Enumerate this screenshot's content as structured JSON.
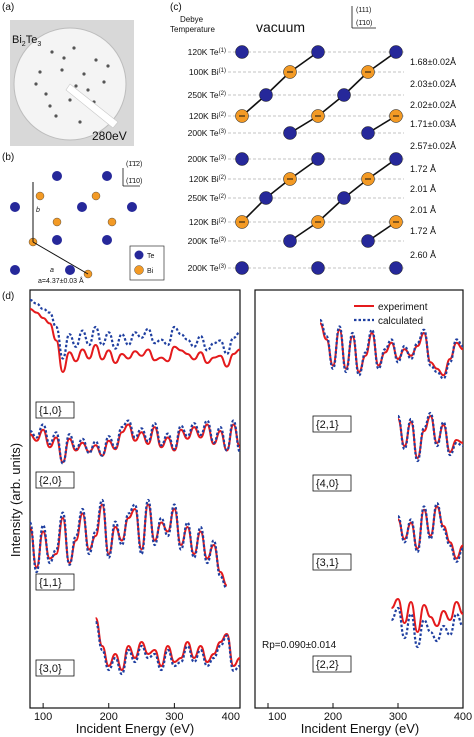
{
  "panels": {
    "a": {
      "label": "(a)",
      "material_main": "Bi",
      "material_sub1": "2",
      "material_mid": "Te",
      "material_sub2": "3",
      "energy": "280eV"
    },
    "b": {
      "label": "(b)",
      "axis_top": "(1̄1̄2)",
      "axis_right": "(1̄10)",
      "vec_b": "b",
      "vec_a": "a",
      "lattice_const": "a=4.37±0.03 Å",
      "legend": [
        {
          "label": "Te",
          "color": "#26289a"
        },
        {
          "label": "Bi",
          "color": "#f39a25"
        }
      ]
    },
    "c": {
      "label": "(c)",
      "debye_line1": "Debye",
      "debye_line2": "Temperature",
      "vacuum": "vacuum",
      "axis_top": "(111)",
      "axis_right": "(1̄10)",
      "layers": [
        {
          "temp": "120K",
          "el": "Te",
          "sup": "(1)",
          "kind": "Te"
        },
        {
          "temp": "100K",
          "el": "Bi",
          "sup": "(1)",
          "kind": "Bi"
        },
        {
          "temp": "250K",
          "el": "Te",
          "sup": "(2)",
          "kind": "Te"
        },
        {
          "temp": "120K",
          "el": "Bi",
          "sup": "(2)",
          "kind": "Bi"
        },
        {
          "temp": "200K",
          "el": "Te",
          "sup": "(3)",
          "kind": "Te"
        },
        {
          "temp": "200K",
          "el": "Te",
          "sup": "(3)",
          "kind": "Te"
        },
        {
          "temp": "120K",
          "el": "Bi",
          "sup": "(2)",
          "kind": "Bi"
        },
        {
          "temp": "250K",
          "el": "Te",
          "sup": "(2)",
          "kind": "Te"
        },
        {
          "temp": "120K",
          "el": "Bi",
          "sup": "(2)",
          "kind": "Bi"
        },
        {
          "temp": "200K",
          "el": "Te",
          "sup": "(3)",
          "kind": "Te"
        },
        {
          "temp": "200K",
          "el": "Te",
          "sup": "(3)",
          "kind": "Te"
        }
      ],
      "spacings": [
        "1.68±0.02Å",
        "2.03±0.02Å",
        "2.02±0.02Å",
        "1.71±0.03Å",
        "2.57±0.02Å",
        "1.72 Å",
        "2.01 Å",
        "2.01 Å",
        "1.72 Å",
        "2.60 Å"
      ]
    },
    "d": {
      "label": "(d)",
      "ylabel": "Intensity (arb. units)",
      "xlabel": "Incident Energy (eV)",
      "legend": [
        {
          "label": "experiment",
          "color": "#e41a1c",
          "style": "solid"
        },
        {
          "label": "calculated",
          "color": "#1f3fa0",
          "style": "dotted"
        }
      ],
      "rp": "Rp=0.090±0.014",
      "left_ticks": [
        "100",
        "200",
        "300",
        "400"
      ],
      "right_ticks": [
        "100",
        "200",
        "300",
        "400"
      ],
      "right_tick_prefix": "400"
    }
  },
  "chart_data": [
    {
      "type": "line",
      "title": "",
      "xlabel": "Incident Energy (eV)",
      "ylabel": "Intensity (arb. units)",
      "xlim": [
        80,
        400
      ],
      "curves": [
        {
          "name": "{1,0}",
          "x": [
            80,
            90,
            100,
            110,
            120,
            130,
            140,
            150,
            160,
            170,
            180,
            190,
            200,
            210,
            220,
            230,
            240,
            250,
            260,
            270,
            280,
            290,
            300,
            310,
            320,
            330,
            340,
            350,
            360,
            370,
            380,
            390,
            400
          ],
          "experiment": [
            0.9,
            0.86,
            0.8,
            0.74,
            0.55,
            0.2,
            0.42,
            0.32,
            0.45,
            0.35,
            0.5,
            0.34,
            0.44,
            0.3,
            0.4,
            0.35,
            0.43,
            0.38,
            0.45,
            0.33,
            0.36,
            0.32,
            0.48,
            0.44,
            0.4,
            0.34,
            0.42,
            0.3,
            0.36,
            0.38,
            0.26,
            0.4,
            0.45
          ],
          "calculated": [
            1.0,
            0.96,
            0.9,
            0.86,
            0.7,
            0.35,
            0.62,
            0.48,
            0.66,
            0.5,
            0.7,
            0.5,
            0.64,
            0.46,
            0.62,
            0.5,
            0.64,
            0.58,
            0.68,
            0.52,
            0.56,
            0.5,
            0.7,
            0.62,
            0.56,
            0.48,
            0.6,
            0.44,
            0.52,
            0.55,
            0.4,
            0.58,
            0.64
          ]
        },
        {
          "name": "{2,0}",
          "x": [
            80,
            90,
            100,
            110,
            120,
            130,
            140,
            150,
            160,
            170,
            180,
            190,
            200,
            210,
            220,
            230,
            240,
            250,
            260,
            270,
            280,
            290,
            300,
            310,
            320,
            330,
            340,
            350,
            360,
            370,
            380,
            390,
            400
          ],
          "experiment": [
            0.55,
            0.45,
            0.62,
            0.35,
            0.5,
            0.12,
            0.48,
            0.3,
            0.42,
            0.28,
            0.38,
            0.22,
            0.45,
            0.32,
            0.58,
            0.7,
            0.45,
            0.58,
            0.4,
            0.66,
            0.35,
            0.5,
            0.3,
            0.62,
            0.48,
            0.66,
            0.5,
            0.7,
            0.4,
            0.6,
            0.3,
            0.7,
            0.35
          ],
          "calculated": [
            0.6,
            0.5,
            0.7,
            0.4,
            0.58,
            0.1,
            0.55,
            0.32,
            0.48,
            0.26,
            0.44,
            0.22,
            0.52,
            0.34,
            0.66,
            0.76,
            0.5,
            0.64,
            0.44,
            0.72,
            0.38,
            0.56,
            0.32,
            0.68,
            0.52,
            0.72,
            0.54,
            0.76,
            0.42,
            0.66,
            0.3,
            0.76,
            0.28
          ]
        },
        {
          "name": "{1,1}",
          "x": [
            80,
            90,
            100,
            110,
            120,
            130,
            140,
            150,
            160,
            170,
            180,
            190,
            200,
            210,
            220,
            230,
            240,
            250,
            260,
            270,
            280,
            290,
            300,
            310,
            320,
            330,
            340,
            350,
            360,
            370,
            380
          ],
          "experiment": [
            0.7,
            0.25,
            0.65,
            0.35,
            0.4,
            0.8,
            0.3,
            0.55,
            0.85,
            0.45,
            0.6,
            0.95,
            0.4,
            0.7,
            0.55,
            0.8,
            0.9,
            0.45,
            0.95,
            0.55,
            0.75,
            0.65,
            0.9,
            0.5,
            0.7,
            0.4,
            0.65,
            0.35,
            0.5,
            0.2,
            0.05
          ],
          "calculated": [
            0.75,
            0.2,
            0.72,
            0.3,
            0.45,
            0.86,
            0.28,
            0.6,
            0.9,
            0.4,
            0.65,
            1.0,
            0.36,
            0.76,
            0.5,
            0.85,
            0.95,
            0.4,
            1.0,
            0.5,
            0.8,
            0.6,
            0.95,
            0.45,
            0.75,
            0.36,
            0.7,
            0.3,
            0.55,
            0.15,
            0.02
          ]
        },
        {
          "name": "{3,0}",
          "x": [
            180,
            190,
            200,
            210,
            220,
            230,
            240,
            250,
            260,
            270,
            280,
            290,
            300,
            310,
            320,
            330,
            340,
            350,
            360,
            370,
            380,
            390,
            400
          ],
          "experiment": [
            0.9,
            0.55,
            0.3,
            0.45,
            0.25,
            0.55,
            0.4,
            0.6,
            0.45,
            0.5,
            0.3,
            0.55,
            0.35,
            0.4,
            0.6,
            0.4,
            0.55,
            0.35,
            0.45,
            0.6,
            0.7,
            0.3,
            0.4
          ],
          "calculated": [
            0.85,
            0.5,
            0.25,
            0.4,
            0.2,
            0.5,
            0.35,
            0.55,
            0.4,
            0.45,
            0.25,
            0.5,
            0.3,
            0.35,
            0.55,
            0.35,
            0.5,
            0.3,
            0.4,
            0.55,
            0.68,
            0.24,
            0.3
          ]
        }
      ]
    },
    {
      "type": "line",
      "title": "",
      "xlabel": "Incident Energy (eV)",
      "ylabel": "",
      "xlim": [
        80,
        400
      ],
      "curves": [
        {
          "name": "{2,1}",
          "x": [
            180,
            190,
            200,
            210,
            220,
            230,
            240,
            250,
            260,
            270,
            280,
            290,
            300,
            310,
            320,
            330,
            340,
            350,
            360,
            370,
            380,
            390,
            400
          ],
          "experiment": [
            0.95,
            0.7,
            0.3,
            0.85,
            0.25,
            0.75,
            0.2,
            0.45,
            0.8,
            0.3,
            0.5,
            0.65,
            0.4,
            0.55,
            0.45,
            0.6,
            0.8,
            0.35,
            0.25,
            0.15,
            0.4,
            0.65,
            0.55
          ],
          "calculated": [
            1.0,
            0.75,
            0.25,
            0.9,
            0.2,
            0.8,
            0.15,
            0.5,
            0.85,
            0.25,
            0.55,
            0.7,
            0.35,
            0.6,
            0.4,
            0.65,
            0.85,
            0.3,
            0.2,
            0.1,
            0.35,
            0.7,
            0.6
          ]
        },
        {
          "name": "{4,0}",
          "x": [
            300,
            310,
            320,
            330,
            340,
            350,
            360,
            370,
            380,
            390,
            400
          ],
          "experiment": [
            0.85,
            0.4,
            0.8,
            0.2,
            0.65,
            0.9,
            0.45,
            0.75,
            0.3,
            0.5,
            0.45
          ],
          "calculated": [
            0.9,
            0.35,
            0.85,
            0.15,
            0.7,
            0.95,
            0.4,
            0.8,
            0.25,
            0.45,
            0.4
          ]
        },
        {
          "name": "{3,1}",
          "x": [
            300,
            310,
            320,
            330,
            340,
            350,
            360,
            370,
            380,
            390,
            400
          ],
          "experiment": [
            0.7,
            0.4,
            0.65,
            0.25,
            0.85,
            0.45,
            0.9,
            0.6,
            0.35,
            0.1,
            0.3
          ],
          "calculated": [
            0.75,
            0.35,
            0.7,
            0.2,
            0.9,
            0.4,
            0.95,
            0.55,
            0.3,
            0.05,
            0.25
          ]
        },
        {
          "name": "{2,2}",
          "x": [
            290,
            300,
            310,
            320,
            330,
            340,
            350,
            360,
            370,
            380,
            390,
            400
          ],
          "experiment": [
            0.7,
            0.85,
            0.45,
            0.8,
            0.3,
            0.75,
            0.55,
            0.4,
            0.65,
            0.5,
            0.8,
            0.6
          ],
          "calculated": [
            0.5,
            0.7,
            0.2,
            0.6,
            0.05,
            0.5,
            0.3,
            0.15,
            0.4,
            0.25,
            0.6,
            0.4
          ]
        }
      ]
    }
  ]
}
